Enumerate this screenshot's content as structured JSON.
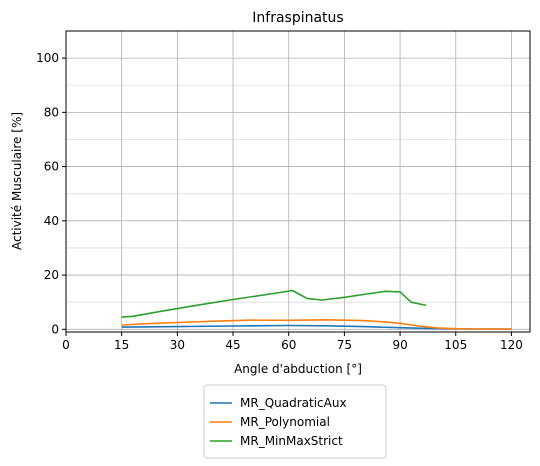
{
  "chart_data": {
    "type": "line",
    "title": "Infraspinatus",
    "xlabel": "Angle d'abduction [°]",
    "ylabel": "Activité Musculaire [%]",
    "xlim": [
      0,
      125
    ],
    "ylim": [
      -1,
      110
    ],
    "xticks": [
      0,
      15,
      30,
      45,
      60,
      75,
      90,
      105,
      120
    ],
    "yticks": [
      0,
      20,
      40,
      60,
      80,
      100
    ],
    "grid": true,
    "legend_position": "below",
    "series": [
      {
        "name": "MR_QuadraticAux",
        "color": "#1f77b4",
        "x": [
          15,
          30,
          45,
          60,
          70,
          80,
          90,
          100,
          110,
          120
        ],
        "y": [
          0.8,
          1.0,
          1.2,
          1.4,
          1.3,
          1.0,
          0.6,
          0.2,
          0.1,
          0.1
        ]
      },
      {
        "name": "MR_Polynomial",
        "color": "#ff7f0e",
        "x": [
          15,
          20,
          30,
          40,
          50,
          60,
          70,
          80,
          85,
          90,
          95,
          100,
          105,
          110,
          120
        ],
        "y": [
          1.5,
          2.0,
          2.5,
          3.0,
          3.4,
          3.3,
          3.5,
          3.2,
          2.8,
          2.2,
          1.2,
          0.5,
          0.2,
          0.1,
          0.1
        ]
      },
      {
        "name": "MR_MinMaxStrict",
        "color": "#2ca02c",
        "x": [
          15,
          18,
          25,
          35,
          45,
          55,
          61,
          65,
          69,
          75,
          82,
          86,
          90,
          93,
          97
        ],
        "y": [
          4.5,
          4.8,
          6.5,
          8.8,
          11.0,
          13.0,
          14.3,
          11.3,
          10.8,
          11.8,
          13.2,
          14.0,
          13.8,
          10.0,
          8.8
        ]
      }
    ]
  }
}
